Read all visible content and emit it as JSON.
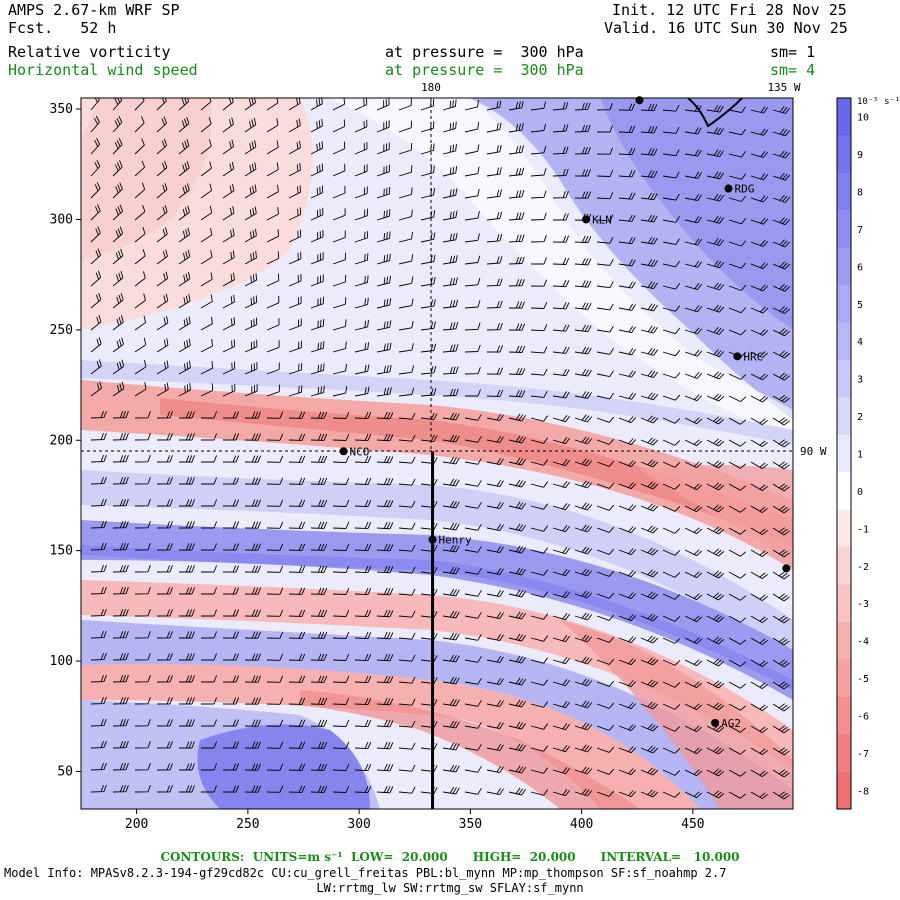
{
  "header": {
    "model": "AMPS 2.67-km WRF SP",
    "fcst": "Fcst.   52 h",
    "init": "Init. 12 UTC Fri 28 Nov 25",
    "valid": "Valid. 16 UTC Sun 30 Nov 25",
    "field1": {
      "name": "Relative vorticity",
      "level": "at pressure =  300 hPa",
      "sm": "sm= 1"
    },
    "field2": {
      "name": "Horizontal wind speed",
      "level": "at pressure =  300 hPa",
      "sm": "sm= 4"
    }
  },
  "map": {
    "x_ticks": [
      "200",
      "250",
      "300",
      "350",
      "400",
      "450"
    ],
    "y_ticks": [
      "350",
      "300",
      "250",
      "200",
      "150",
      "100",
      "50"
    ],
    "lon_labels": {
      "top_180": "180",
      "top_135w": "135 W",
      "right_90w": "90 W"
    },
    "stations": [
      {
        "name": "NCO",
        "x": 293,
        "y": 195
      },
      {
        "name": "Henry",
        "x": 333,
        "y": 155
      },
      {
        "name": "KLN",
        "x": 402,
        "y": 300
      },
      {
        "name": "RDG",
        "x": 466,
        "y": 314
      },
      {
        "name": "HRC",
        "x": 470,
        "y": 238
      },
      {
        "name": "AG2",
        "x": 460,
        "y": 72
      },
      {
        "name": "",
        "x": 426,
        "y": 354
      },
      {
        "name": "",
        "x": 492,
        "y": 142
      }
    ],
    "xlim": [
      175,
      495
    ],
    "ylim": [
      33,
      355
    ],
    "cross_section": {
      "x": 333,
      "y_from": 33,
      "y_to": 195
    }
  },
  "colorbar": {
    "unit": "10⁻⁵ s⁻¹",
    "labels": [
      "10",
      "9",
      "8",
      "7",
      "6",
      "5",
      "4",
      "3",
      "2",
      "1",
      "0",
      "-1",
      "-2",
      "-3",
      "-4",
      "-5",
      "-6",
      "-7",
      "-8"
    ],
    "colors": [
      "#6868ee",
      "#7474ee",
      "#8080f0",
      "#8e8ef2",
      "#9c9cf4",
      "#aaaaf6",
      "#b8b8f8",
      "#c8c8fa",
      "#d8d8fc",
      "#e8e8fe",
      "#ffffff",
      "#fde8e8",
      "#fcd4d4",
      "#fac4c4",
      "#f8b0b0",
      "#f6a0a0",
      "#f49090",
      "#f28080",
      "#f07070"
    ]
  },
  "footer": {
    "contours": "CONTOURS:  UNITS=m s⁻¹  LOW=  20.000      HIGH=  20.000      INTERVAL=   10.000",
    "model_info": "Model Info: MPASv8.2.3-194-gf29cd82c CU:cu_grell_freitas PBL:bl_mynn MP:mp_thompson SF:sf_noahmp 2.7",
    "model_info2": "LW:rrtmg_lw SW:rrtmg_sw SFLAY:sf_mynn"
  }
}
